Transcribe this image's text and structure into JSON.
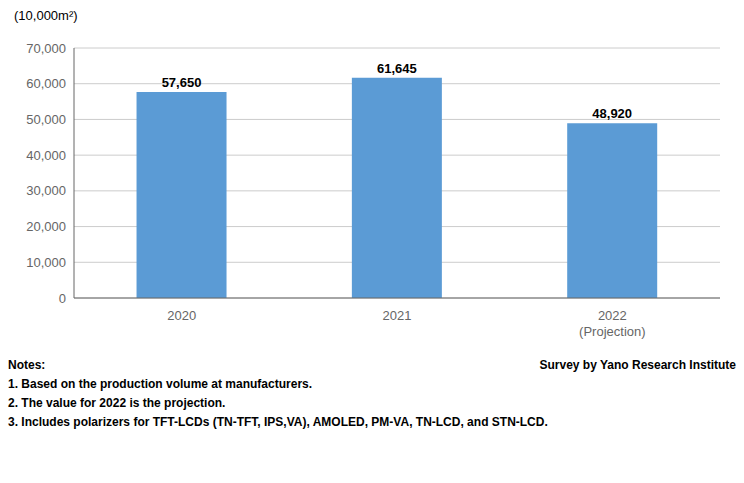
{
  "chart_data": {
    "type": "bar",
    "categories": [
      "2020",
      "2021",
      "2022\n(Projection)"
    ],
    "values": [
      57650,
      61645,
      48920
    ],
    "value_labels": [
      "57,650",
      "61,645",
      "48,920"
    ],
    "data_labels": true,
    "color": "#5B9BD5",
    "ylabel": "(10,000m²)",
    "ylim": [
      0,
      70000
    ],
    "yticks": [
      0,
      {
        "value": 10000,
        "label": "10,000"
      },
      {
        "value": 20000,
        "label": "20,000"
      },
      {
        "value": 30000,
        "label": "30,000"
      },
      {
        "value": 40000,
        "label": "40,000"
      },
      {
        "value": 50000,
        "label": "50,000"
      },
      {
        "value": 60000,
        "label": "60,000"
      },
      {
        "value": 70000,
        "label": "70,000"
      }
    ],
    "grid": true,
    "notes_title": "Notes:",
    "source": "Survey by Yano Research Institute",
    "notes": [
      "1. Based on the production volume at manufacturers.",
      "2. The value for 2022 is the projection.",
      "3. Includes polarizers for TFT-LCDs (TN-TFT, IPS,VA), AMOLED, PM-VA, TN-LCD, and STN-LCD."
    ]
  }
}
